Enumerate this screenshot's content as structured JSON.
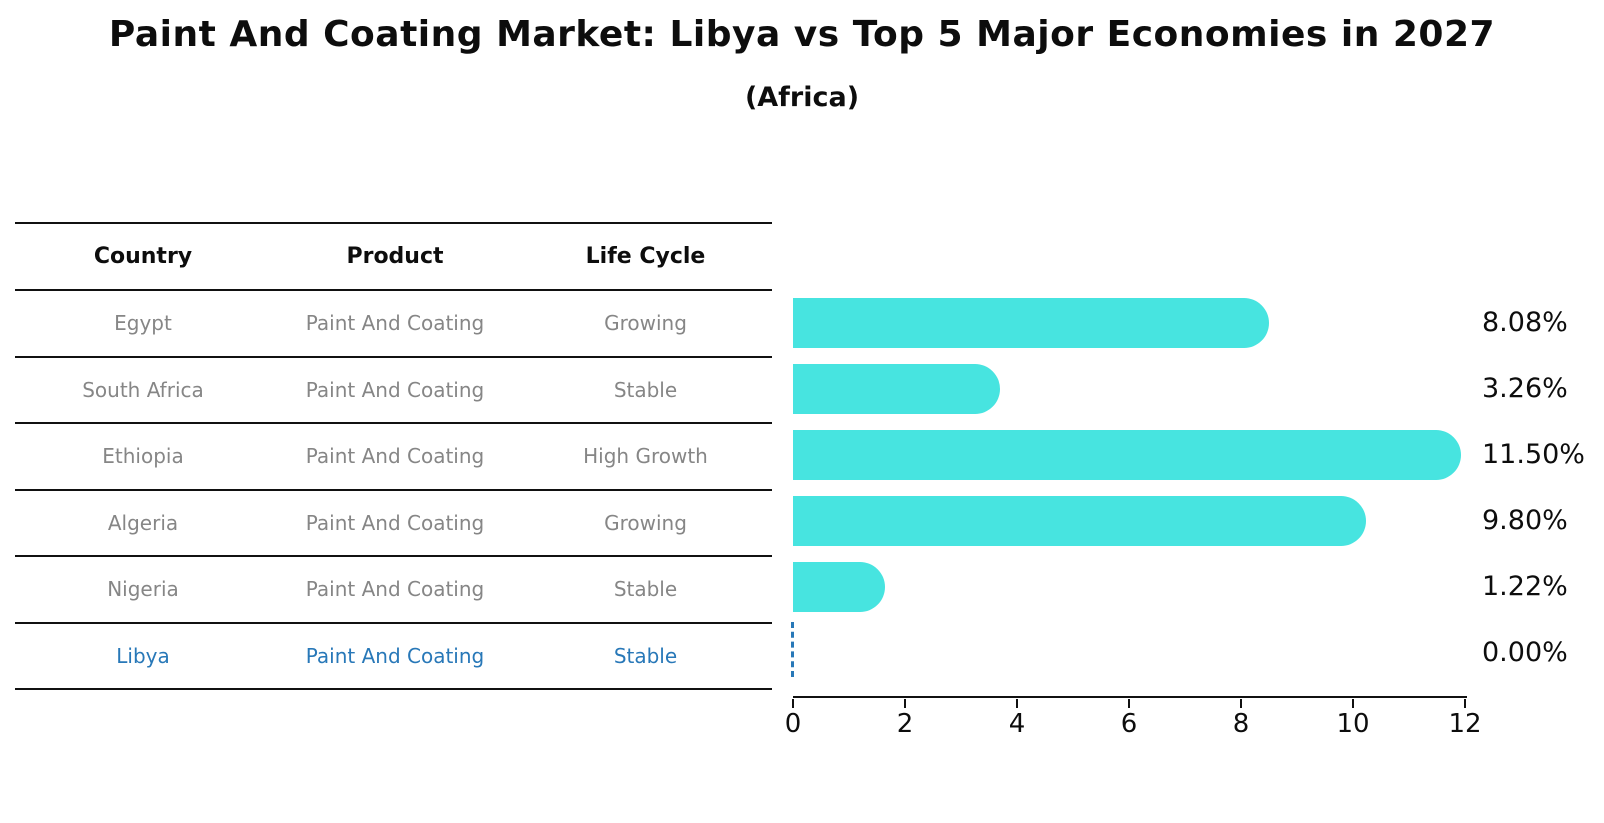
{
  "title": "Paint And Coating Market: Libya vs Top 5 Major Economies in 2027",
  "subtitle": "(Africa)",
  "table": {
    "headers": [
      "Country",
      "Product",
      "Life Cycle"
    ],
    "rows": [
      {
        "country": "Egypt",
        "product": "Paint And Coating",
        "life_cycle": "Growing",
        "highlight": false
      },
      {
        "country": "South Africa",
        "product": "Paint And Coating",
        "life_cycle": "Stable",
        "highlight": false
      },
      {
        "country": "Ethiopia",
        "product": "Paint And Coating",
        "life_cycle": "High Growth",
        "highlight": false
      },
      {
        "country": "Algeria",
        "product": "Paint And Coating",
        "life_cycle": "Growing",
        "highlight": false
      },
      {
        "country": "Nigeria",
        "product": "Paint And Coating",
        "life_cycle": "Stable",
        "highlight": false
      },
      {
        "country": "Libya",
        "product": "Paint And Coating",
        "life_cycle": "Stable",
        "highlight": true
      }
    ]
  },
  "chart_data": {
    "type": "bar",
    "orientation": "horizontal",
    "title": "Paint And Coating Market: Libya vs Top 5 Major Economies in 2027",
    "subtitle": "(Africa)",
    "categories": [
      "Egypt",
      "South Africa",
      "Ethiopia",
      "Algeria",
      "Nigeria",
      "Libya"
    ],
    "values": [
      8.08,
      3.26,
      11.5,
      9.8,
      1.22,
      0.0
    ],
    "value_labels": [
      "8.08%",
      "3.26%",
      "11.50%",
      "9.80%",
      "1.22%",
      "0.00%"
    ],
    "xlim": [
      0,
      12
    ],
    "xticks": [
      0,
      2,
      4,
      6,
      8,
      10,
      12
    ],
    "xtick_labels": [
      "0",
      "2",
      "4",
      "6",
      "8",
      "10",
      "12"
    ],
    "grid": false,
    "legend": "none",
    "bar_color": "#47e4e0",
    "highlight_color": "#2878b8"
  },
  "colors": {
    "bar_cyan": "#47e4e0",
    "highlight_blue": "#2878b8",
    "row_text_gray": "#868686",
    "text_black": "#0d0d0d"
  }
}
